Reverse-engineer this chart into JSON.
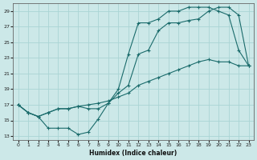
{
  "xlabel": "Humidex (Indice chaleur)",
  "bg_color": "#cce8e8",
  "grid_color": "#aad4d4",
  "line_color": "#1a6b6b",
  "xlim": [
    -0.5,
    23.5
  ],
  "ylim": [
    12.5,
    30.0
  ],
  "xticks": [
    0,
    1,
    2,
    3,
    4,
    5,
    6,
    7,
    8,
    9,
    10,
    11,
    12,
    13,
    14,
    15,
    16,
    17,
    18,
    19,
    20,
    21,
    22,
    23
  ],
  "yticks": [
    13,
    15,
    17,
    19,
    21,
    23,
    25,
    27,
    29
  ],
  "line1_x": [
    0,
    1,
    2,
    3,
    4,
    5,
    6,
    7,
    8,
    9,
    10,
    11,
    12,
    13,
    14,
    15,
    16,
    17,
    18,
    19,
    20,
    21,
    22,
    23
  ],
  "line1_y": [
    17.0,
    16.0,
    15.5,
    14.0,
    14.0,
    14.0,
    13.2,
    13.5,
    15.2,
    17.2,
    19.0,
    23.5,
    27.5,
    27.5,
    28.0,
    29.0,
    29.0,
    29.5,
    29.5,
    29.5,
    29.0,
    28.5,
    24.0,
    22.0
  ],
  "line2_x": [
    0,
    1,
    2,
    3,
    4,
    5,
    6,
    7,
    8,
    9,
    10,
    11,
    12,
    13,
    14,
    15,
    16,
    17,
    18,
    19,
    20,
    21,
    22,
    23
  ],
  "line2_y": [
    17.0,
    16.0,
    15.5,
    16.0,
    16.5,
    16.5,
    16.8,
    16.5,
    16.5,
    17.2,
    18.5,
    19.5,
    23.5,
    24.0,
    26.5,
    27.5,
    27.5,
    27.8,
    28.0,
    29.0,
    29.5,
    29.5,
    28.5,
    22.0
  ],
  "line3_x": [
    0,
    1,
    2,
    3,
    4,
    5,
    6,
    7,
    8,
    9,
    10,
    11,
    12,
    13,
    14,
    15,
    16,
    17,
    18,
    19,
    20,
    21,
    22,
    23
  ],
  "line3_y": [
    17.0,
    16.0,
    15.5,
    16.0,
    16.5,
    16.5,
    16.8,
    17.0,
    17.2,
    17.5,
    18.0,
    18.5,
    19.5,
    20.0,
    20.5,
    21.0,
    21.5,
    22.0,
    22.5,
    22.8,
    22.5,
    22.5,
    22.0,
    22.0
  ]
}
